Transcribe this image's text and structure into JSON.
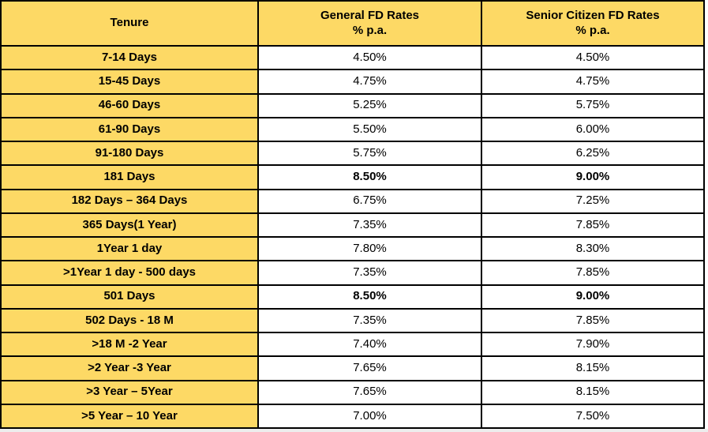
{
  "colors": {
    "cell_yellow": "#FDD965",
    "border": "#000000",
    "text": "#000000",
    "rate_bg": "#ffffff",
    "bottom_strip": "#ededed"
  },
  "table": {
    "header": {
      "tenure": "Tenure",
      "general_line1": "General FD Rates",
      "general_line2": "% p.a.",
      "senior_line1": "Senior Citizen FD Rates",
      "senior_line2": "% p.a."
    },
    "rows": [
      {
        "tenure": "7-14 Days",
        "general": "4.50%",
        "senior": "4.50%",
        "bold": false
      },
      {
        "tenure": "15-45 Days",
        "general": "4.75%",
        "senior": "4.75%",
        "bold": false
      },
      {
        "tenure": "46-60 Days",
        "general": "5.25%",
        "senior": "5.75%",
        "bold": false
      },
      {
        "tenure": "61-90 Days",
        "general": "5.50%",
        "senior": "6.00%",
        "bold": false
      },
      {
        "tenure": "91-180 Days",
        "general": "5.75%",
        "senior": "6.25%",
        "bold": false
      },
      {
        "tenure": "181 Days",
        "general": "8.50%",
        "senior": "9.00%",
        "bold": true
      },
      {
        "tenure": "182 Days – 364 Days",
        "general": "6.75%",
        "senior": "7.25%",
        "bold": false
      },
      {
        "tenure": "365 Days(1 Year)",
        "general": "7.35%",
        "senior": "7.85%",
        "bold": false
      },
      {
        "tenure": "1Year 1 day",
        "general": "7.80%",
        "senior": "8.30%",
        "bold": false
      },
      {
        "tenure": ">1Year 1 day - 500 days",
        "general": "7.35%",
        "senior": "7.85%",
        "bold": false
      },
      {
        "tenure": "501 Days",
        "general": "8.50%",
        "senior": "9.00%",
        "bold": true
      },
      {
        "tenure": "502 Days - 18 M",
        "general": "7.35%",
        "senior": "7.85%",
        "bold": false
      },
      {
        "tenure": ">18 M -2 Year",
        "general": "7.40%",
        "senior": "7.90%",
        "bold": false
      },
      {
        "tenure": ">2 Year -3 Year",
        "general": "7.65%",
        "senior": "8.15%",
        "bold": false
      },
      {
        "tenure": ">3 Year – 5Year",
        "general": "7.65%",
        "senior": "8.15%",
        "bold": false
      },
      {
        "tenure": ">5 Year – 10 Year",
        "general": "7.00%",
        "senior": "7.50%",
        "bold": false
      }
    ]
  }
}
